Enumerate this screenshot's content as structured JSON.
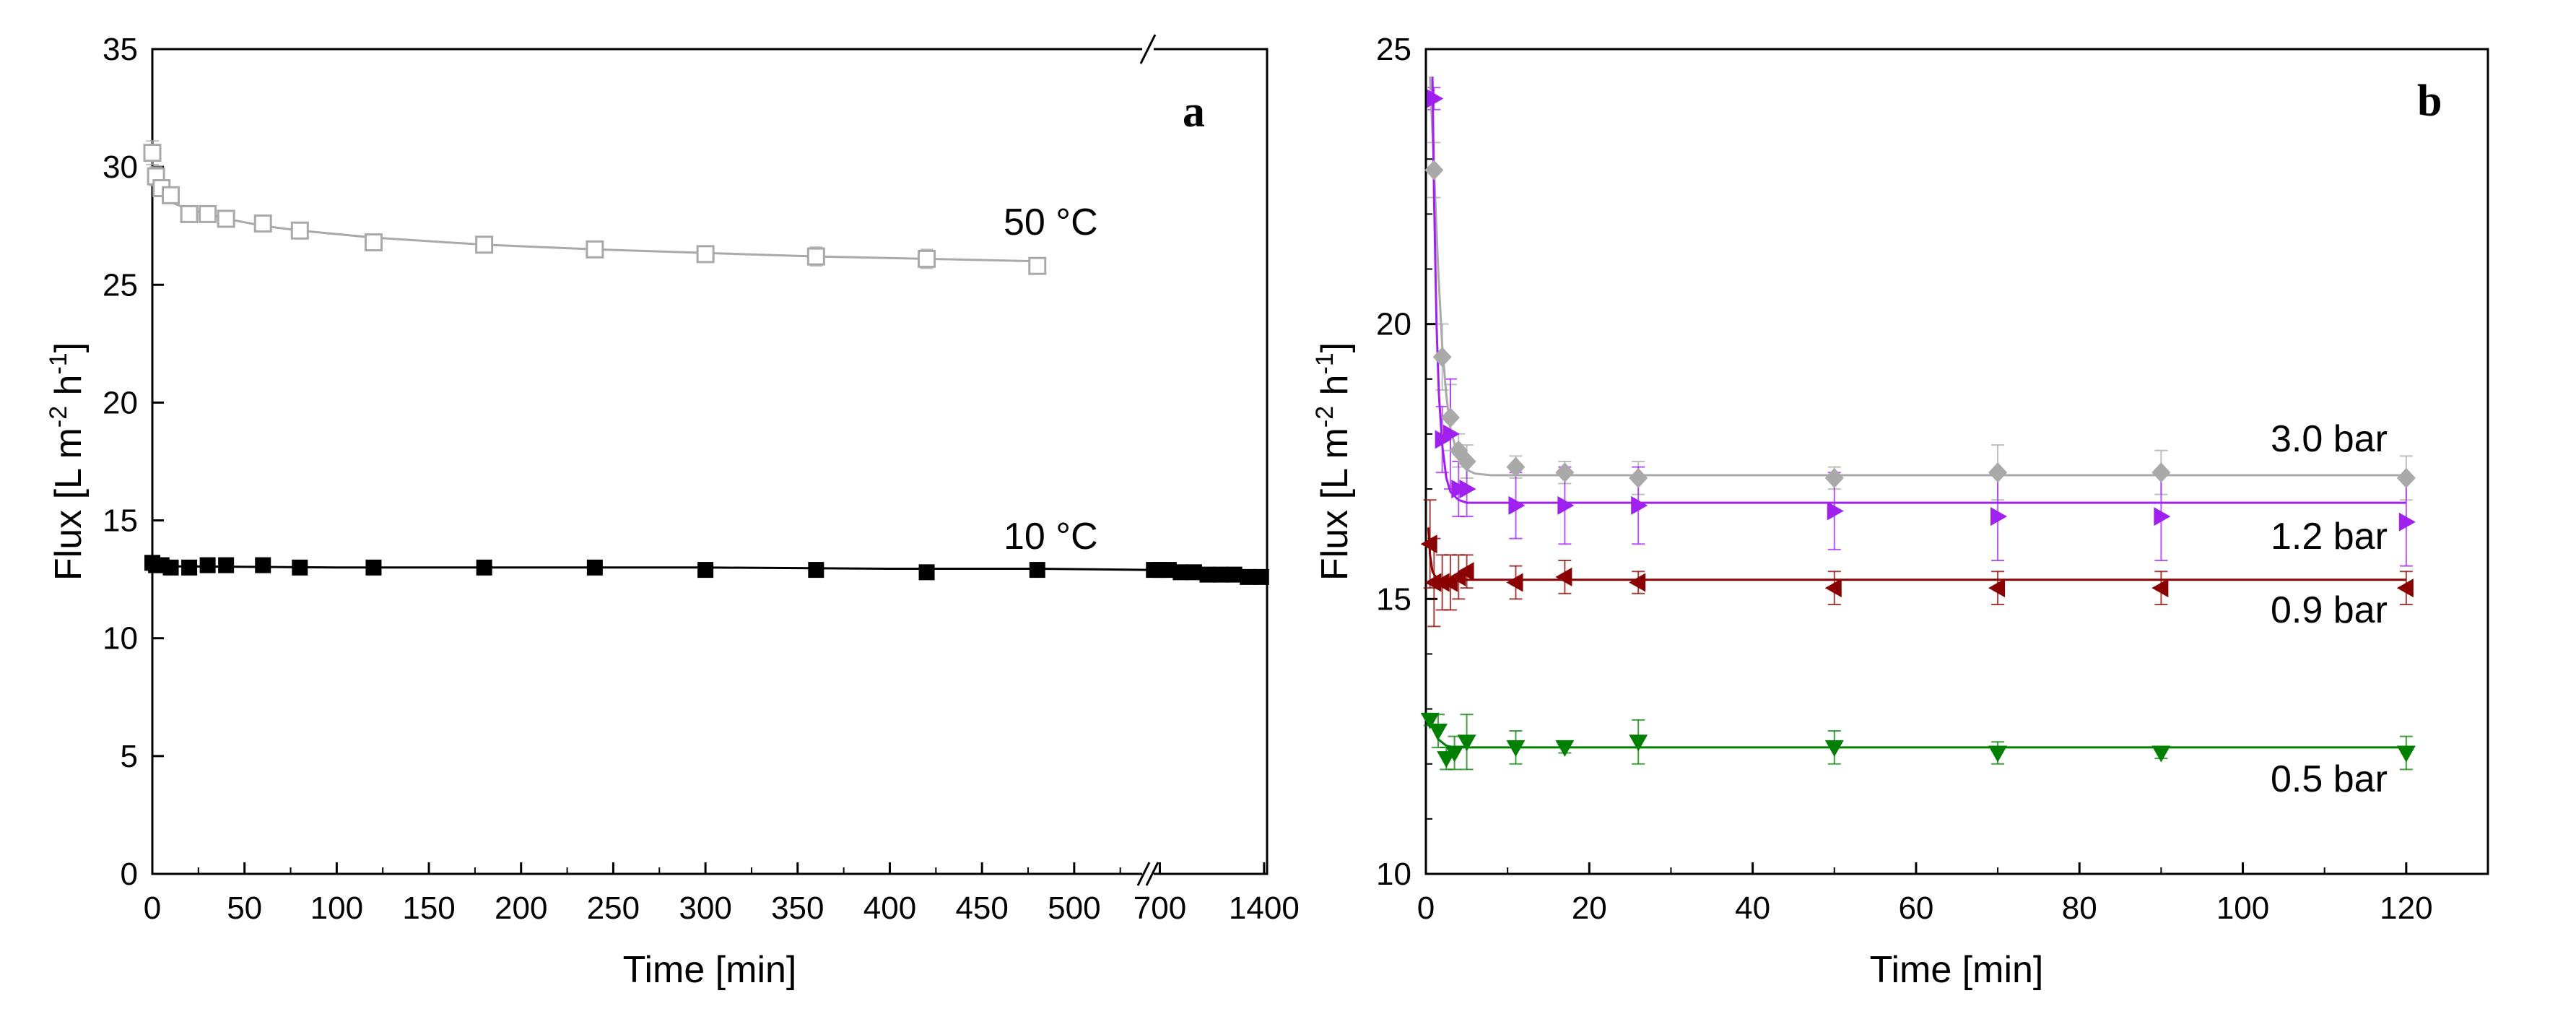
{
  "chart_data": [
    {
      "type": "scatter",
      "panel": "a",
      "xlabel": "Time [min]",
      "ylabel_main": "Flux [L m",
      "ylabel_sup1": "-2",
      "ylabel_mid": " h",
      "ylabel_sup2": "-1",
      "ylabel_end": "]",
      "ylim": [
        0,
        35
      ],
      "yticks": [
        0,
        5,
        10,
        15,
        20,
        25,
        30,
        35
      ],
      "xlim_segment1": [
        0,
        540
      ],
      "xticks_segment1": [
        0,
        50,
        100,
        150,
        200,
        250,
        300,
        350,
        400,
        450,
        500
      ],
      "xlim_segment2": [
        620,
        1420
      ],
      "xticks_segment2": [
        700,
        1400
      ],
      "axis_break": true,
      "series": [
        {
          "name": "50 °C",
          "color": "#a9a9a9",
          "marker": "hollow-square",
          "x": [
            0,
            2,
            5,
            10,
            20,
            30,
            40,
            60,
            80,
            120,
            180,
            240,
            300,
            360,
            420,
            480
          ],
          "y": [
            30.6,
            29.6,
            29.1,
            28.8,
            28.0,
            28.0,
            27.8,
            27.6,
            27.3,
            26.8,
            26.7,
            26.5,
            26.3,
            26.2,
            26.1,
            25.8
          ],
          "err": [
            0.5,
            0.4,
            0.3,
            0.2,
            0.2,
            0.2,
            0.2,
            0.3,
            0.2,
            0.2,
            0.2,
            0.2,
            0.3,
            0.4,
            0.4,
            0.3
          ],
          "fit_x": [
            0,
            2,
            5,
            10,
            20,
            40,
            60,
            80,
            120,
            180,
            240,
            300,
            360,
            420,
            480
          ],
          "fit_y": [
            30.0,
            29.2,
            28.8,
            28.5,
            28.2,
            27.8,
            27.5,
            27.3,
            27.0,
            26.7,
            26.5,
            26.35,
            26.2,
            26.1,
            26.0
          ]
        },
        {
          "name": "10 °C",
          "color": "#000000",
          "marker": "filled-square",
          "x": [
            0,
            2,
            5,
            10,
            20,
            30,
            40,
            60,
            80,
            120,
            180,
            240,
            300,
            360,
            420,
            480,
            660,
            700,
            760,
            840,
            930,
            1020,
            1110,
            1200,
            1290,
            1380
          ],
          "y": [
            13.2,
            13.1,
            13.1,
            13.0,
            13.0,
            13.1,
            13.1,
            13.1,
            13.0,
            13.0,
            13.0,
            13.0,
            12.9,
            12.9,
            12.8,
            12.9,
            12.9,
            12.9,
            12.9,
            12.8,
            12.8,
            12.7,
            12.7,
            12.7,
            12.6,
            12.6
          ],
          "fit_x": [
            0,
            20,
            100,
            200,
            300,
            400,
            480,
            620,
            1000,
            1420
          ],
          "fit_y": [
            13.05,
            13.05,
            13.0,
            13.0,
            13.0,
            12.95,
            12.95,
            12.9,
            12.8,
            12.6
          ]
        }
      ]
    },
    {
      "type": "scatter",
      "panel": "b",
      "xlabel": "Time [min]",
      "ylabel_main": "Flux [L m",
      "ylabel_sup1": "-2",
      "ylabel_mid": " h",
      "ylabel_sup2": "-1",
      "ylabel_end": "]",
      "ylim": [
        10,
        25
      ],
      "yticks": [
        10,
        15,
        20,
        25
      ],
      "xlim": [
        0,
        130
      ],
      "xticks": [
        0,
        20,
        40,
        60,
        80,
        100,
        120
      ],
      "series": [
        {
          "name": "3.0 bar",
          "color": "#a9a9a9",
          "marker": "diamond",
          "x": [
            1,
            2,
            3,
            4,
            5,
            11,
            17,
            26,
            50,
            70,
            90,
            120
          ],
          "y": [
            22.8,
            19.4,
            18.3,
            17.7,
            17.5,
            17.4,
            17.3,
            17.2,
            17.2,
            17.3,
            17.3,
            17.2
          ],
          "err": [
            0.5,
            0.6,
            0.6,
            0.3,
            0.3,
            0.2,
            0.2,
            0.3,
            0.2,
            0.5,
            0.4,
            0.4
          ],
          "fit_x": [
            0.5,
            1,
            1.5,
            2,
            2.5,
            3,
            4,
            5,
            6,
            8,
            10,
            120
          ],
          "fit_y": [
            24.5,
            22.8,
            21.0,
            19.6,
            18.7,
            18.1,
            17.55,
            17.35,
            17.28,
            17.25,
            17.25,
            17.25
          ]
        },
        {
          "name": "1.2 bar",
          "color": "#a020f0",
          "marker": "triangle-right",
          "x": [
            1,
            2,
            3,
            4,
            5,
            11,
            17,
            26,
            50,
            70,
            90,
            120
          ],
          "y": [
            24.1,
            17.9,
            18.0,
            17.0,
            17.0,
            16.7,
            16.7,
            16.7,
            16.6,
            16.5,
            16.5,
            16.4
          ],
          "err": [
            0.2,
            0.6,
            1.0,
            0.5,
            0.5,
            0.6,
            0.7,
            0.7,
            0.7,
            0.8,
            0.8,
            0.8
          ],
          "fit_x": [
            0.8,
            1,
            1.3,
            1.6,
            2,
            2.5,
            3,
            4,
            5,
            7,
            10,
            120
          ],
          "fit_y": [
            24.5,
            22.3,
            20.0,
            18.7,
            17.8,
            17.2,
            16.95,
            16.8,
            16.75,
            16.75,
            16.75,
            16.75
          ]
        },
        {
          "name": "0.9 bar",
          "color": "#8b0000",
          "marker": "triangle-left",
          "x": [
            0.5,
            1,
            2,
            3,
            4,
            5,
            11,
            17,
            26,
            50,
            70,
            90,
            120
          ],
          "y": [
            16.0,
            15.3,
            15.3,
            15.3,
            15.4,
            15.5,
            15.3,
            15.4,
            15.3,
            15.2,
            15.2,
            15.2,
            15.2
          ],
          "err": [
            0.8,
            0.8,
            0.5,
            0.5,
            0.4,
            0.3,
            0.3,
            0.3,
            0.2,
            0.3,
            0.3,
            0.3,
            0.3
          ],
          "fit_x": [
            0.3,
            0.5,
            0.8,
            1.2,
            2,
            3,
            120
          ],
          "fit_y": [
            16.3,
            15.8,
            15.5,
            15.4,
            15.35,
            15.35,
            15.35
          ]
        },
        {
          "name": "0.5 bar",
          "color": "#008000",
          "marker": "triangle-down",
          "x": [
            0.5,
            1.5,
            2.5,
            3.5,
            5,
            11,
            17,
            26,
            50,
            70,
            90,
            120
          ],
          "y": [
            12.8,
            12.6,
            12.1,
            12.2,
            12.4,
            12.3,
            12.3,
            12.4,
            12.3,
            12.2,
            12.2,
            12.2
          ],
          "err": [
            0.1,
            0.3,
            0.2,
            0.3,
            0.5,
            0.3,
            0.1,
            0.4,
            0.3,
            0.2,
            0.1,
            0.3
          ],
          "fit_x": [
            0.3,
            0.8,
            1.5,
            2.5,
            3.5,
            5,
            120
          ],
          "fit_y": [
            12.9,
            12.65,
            12.45,
            12.33,
            12.3,
            12.3,
            12.3
          ]
        }
      ]
    }
  ],
  "panel_a_letter": "a",
  "panel_b_letter": "b",
  "label_50C": "50 °C",
  "label_10C": "10 °C",
  "label_3bar": "3.0 bar",
  "label_12bar": "1.2 bar",
  "label_09bar": "0.9 bar",
  "label_05bar": "0.5 bar"
}
